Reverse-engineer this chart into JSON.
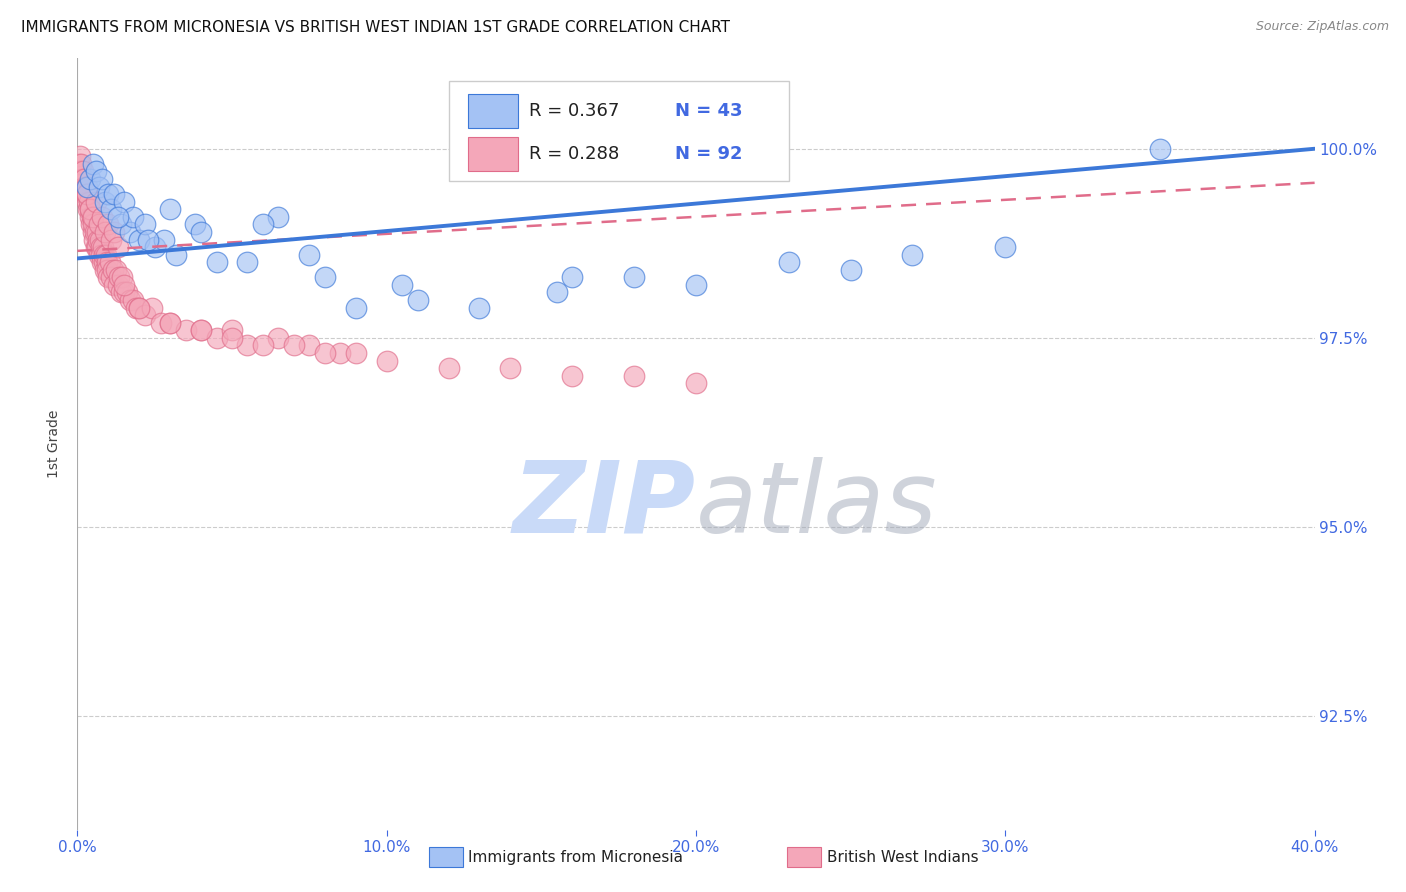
{
  "title": "IMMIGRANTS FROM MICRONESIA VS BRITISH WEST INDIAN 1ST GRADE CORRELATION CHART",
  "source": "Source: ZipAtlas.com",
  "ylabel_label": "1st Grade",
  "y_ticks": [
    92.5,
    95.0,
    97.5,
    100.0
  ],
  "y_tick_labels": [
    "92.5%",
    "95.0%",
    "97.5%",
    "100.0%"
  ],
  "x_min": 0.0,
  "x_max": 40.0,
  "y_min": 91.0,
  "y_max": 101.2,
  "r_micronesia": 0.367,
  "n_micronesia": 43,
  "r_british": 0.288,
  "n_british": 92,
  "micronesia_color": "#a4c2f4",
  "british_color": "#f4a7b9",
  "micronesia_edge_color": "#3c78d8",
  "british_edge_color": "#e06c8a",
  "micronesia_line_color": "#3c78d8",
  "british_line_color": "#e06c8a",
  "watermark_color": "#c9daf8",
  "legend_label_micronesia": "Immigrants from Micronesia",
  "legend_label_british": "British West Indians",
  "mic_trend_x0": 0.0,
  "mic_trend_y0": 98.55,
  "mic_trend_x1": 40.0,
  "mic_trend_y1": 100.0,
  "brit_trend_x0": 0.0,
  "brit_trend_y0": 98.65,
  "brit_trend_x1": 40.0,
  "brit_trend_y1": 99.55,
  "micronesia_x": [
    0.3,
    0.4,
    0.5,
    0.6,
    0.7,
    0.8,
    0.9,
    1.0,
    1.1,
    1.2,
    1.4,
    1.5,
    1.7,
    1.8,
    2.0,
    2.2,
    2.5,
    2.8,
    3.2,
    3.8,
    4.5,
    5.5,
    6.5,
    7.5,
    9.0,
    10.5,
    13.0,
    15.5,
    18.0,
    20.0,
    23.0,
    25.0,
    27.0,
    30.0,
    35.0,
    1.3,
    2.3,
    3.0,
    4.0,
    6.0,
    8.0,
    11.0,
    16.0
  ],
  "micronesia_y": [
    99.5,
    99.6,
    99.8,
    99.7,
    99.5,
    99.6,
    99.3,
    99.4,
    99.2,
    99.4,
    99.0,
    99.3,
    98.9,
    99.1,
    98.8,
    99.0,
    98.7,
    98.8,
    98.6,
    99.0,
    98.5,
    98.5,
    99.1,
    98.6,
    97.9,
    98.2,
    97.9,
    98.1,
    98.3,
    98.2,
    98.5,
    98.4,
    98.6,
    98.7,
    100.0,
    99.1,
    98.8,
    99.2,
    98.9,
    99.0,
    98.3,
    98.0,
    98.3
  ],
  "british_x": [
    0.05,
    0.08,
    0.1,
    0.12,
    0.15,
    0.17,
    0.2,
    0.22,
    0.25,
    0.28,
    0.3,
    0.32,
    0.35,
    0.37,
    0.4,
    0.42,
    0.45,
    0.47,
    0.5,
    0.52,
    0.55,
    0.57,
    0.6,
    0.62,
    0.65,
    0.67,
    0.7,
    0.72,
    0.75,
    0.77,
    0.8,
    0.82,
    0.85,
    0.87,
    0.9,
    0.92,
    0.95,
    0.97,
    1.0,
    1.05,
    1.1,
    1.15,
    1.2,
    1.25,
    1.3,
    1.35,
    1.4,
    1.45,
    1.5,
    1.6,
    1.7,
    1.8,
    1.9,
    2.0,
    2.2,
    2.4,
    2.7,
    3.0,
    3.5,
    4.0,
    4.5,
    5.0,
    5.5,
    6.5,
    7.5,
    8.5,
    0.3,
    0.4,
    0.5,
    0.6,
    0.7,
    0.8,
    0.9,
    1.0,
    1.1,
    1.2,
    1.3,
    1.5,
    2.0,
    3.0,
    4.0,
    5.0,
    6.0,
    7.0,
    8.0,
    9.0,
    10.0,
    12.0,
    14.0,
    16.0,
    18.0,
    20.0
  ],
  "british_y": [
    99.8,
    99.9,
    99.7,
    99.8,
    99.6,
    99.7,
    99.5,
    99.6,
    99.4,
    99.5,
    99.3,
    99.4,
    99.2,
    99.3,
    99.1,
    99.2,
    99.0,
    99.1,
    98.9,
    99.0,
    98.8,
    98.9,
    98.7,
    98.9,
    98.7,
    98.8,
    98.6,
    98.8,
    98.7,
    98.6,
    98.5,
    98.7,
    98.5,
    98.6,
    98.4,
    98.6,
    98.5,
    98.4,
    98.3,
    98.5,
    98.3,
    98.4,
    98.2,
    98.4,
    98.2,
    98.3,
    98.1,
    98.3,
    98.1,
    98.1,
    98.0,
    98.0,
    97.9,
    97.9,
    97.8,
    97.9,
    97.7,
    97.7,
    97.6,
    97.6,
    97.5,
    97.6,
    97.4,
    97.5,
    97.4,
    97.3,
    99.4,
    99.2,
    99.1,
    99.3,
    99.0,
    99.1,
    98.9,
    99.0,
    98.8,
    98.9,
    98.7,
    98.2,
    97.9,
    97.7,
    97.6,
    97.5,
    97.4,
    97.4,
    97.3,
    97.3,
    97.2,
    97.1,
    97.1,
    97.0,
    97.0,
    96.9
  ]
}
